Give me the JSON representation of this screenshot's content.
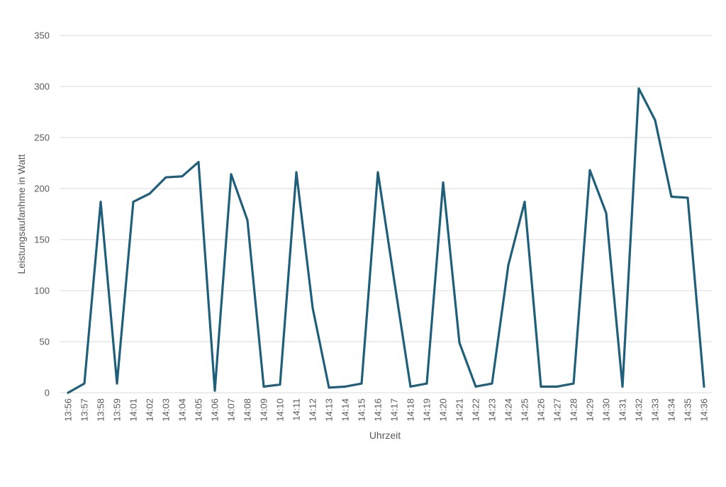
{
  "chart_data": {
    "type": "line",
    "title": "",
    "xlabel": "Uhrzeit",
    "ylabel": "Leistungsaufanhme in Watt",
    "ylim": [
      0,
      350
    ],
    "y_ticks": [
      0,
      50,
      100,
      150,
      200,
      250,
      300,
      350
    ],
    "grid": true,
    "legend": "none",
    "series_color": "#1f5f7a",
    "categories": [
      "13:56",
      "13:57",
      "13:58",
      "13:59",
      "14:01",
      "14:02",
      "14:03",
      "14:04",
      "14:05",
      "14:06",
      "14:07",
      "14:08",
      "14:09",
      "14:10",
      "14:11",
      "14:12",
      "14:13",
      "14:14",
      "14:15",
      "14:16",
      "14:17",
      "14:18",
      "14:19",
      "14:20",
      "14:21",
      "14:22",
      "14:23",
      "14:24",
      "14:25",
      "14:26",
      "14:27",
      "14:28",
      "14:29",
      "14:30",
      "14:31",
      "14:32",
      "14:33",
      "14:34",
      "14:35",
      "14:36"
    ],
    "series": [
      {
        "values": [
          0,
          9,
          187,
          9,
          187,
          195,
          211,
          212,
          226,
          2,
          214,
          169,
          6,
          8,
          216,
          83,
          5,
          6,
          9,
          216,
          110,
          6,
          9,
          206,
          49,
          6,
          9,
          125,
          187,
          6,
          6,
          9,
          218,
          176,
          6,
          298,
          267,
          192,
          191,
          6
        ]
      }
    ]
  }
}
